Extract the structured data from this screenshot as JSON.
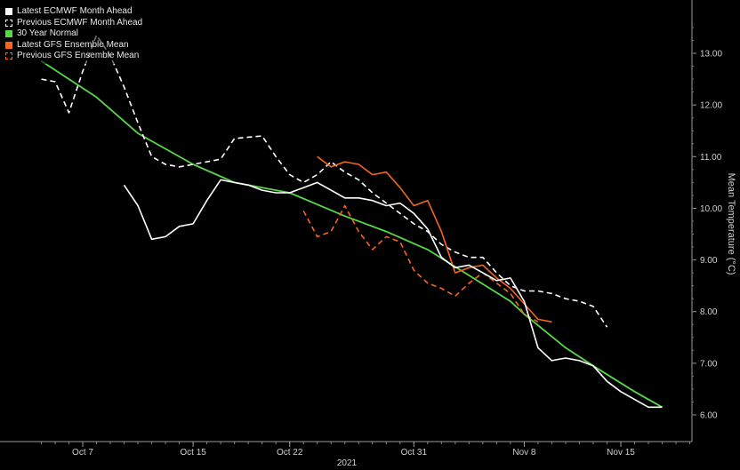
{
  "chart_data": {
    "type": "line",
    "xlabel": "2021",
    "ylabel": "Mean Temperature (°C)",
    "ylim": [
      5.8,
      13.9
    ],
    "xlim": [
      "2021-10-04",
      "2021-11-20"
    ],
    "grid": false,
    "legend_position": "top-left",
    "x_ticks": [
      {
        "date": "2021-10-07",
        "label": "Oct 7"
      },
      {
        "date": "2021-10-15",
        "label": "Oct 15"
      },
      {
        "date": "2021-10-22",
        "label": "Oct 22"
      },
      {
        "date": "2021-10-31",
        "label": "Oct 31"
      },
      {
        "date": "2021-11-08",
        "label": "Nov 8"
      },
      {
        "date": "2021-11-15",
        "label": "Nov 15"
      }
    ],
    "y_ticks": [
      "6.00",
      "7.00",
      "8.00",
      "9.00",
      "10.00",
      "11.00",
      "12.00",
      "13.00"
    ],
    "series": [
      {
        "name": "Latest ECMWF Month Ahead",
        "color": "#ffffff",
        "style": "solid",
        "points": [
          [
            "2021-10-10",
            10.45
          ],
          [
            "2021-10-11",
            10.05
          ],
          [
            "2021-10-12",
            9.4
          ],
          [
            "2021-10-13",
            9.45
          ],
          [
            "2021-10-14",
            9.65
          ],
          [
            "2021-10-15",
            9.7
          ],
          [
            "2021-10-16",
            10.15
          ],
          [
            "2021-10-17",
            10.55
          ],
          [
            "2021-10-18",
            10.5
          ],
          [
            "2021-10-19",
            10.45
          ],
          [
            "2021-10-20",
            10.35
          ],
          [
            "2021-10-21",
            10.3
          ],
          [
            "2021-10-22",
            10.3
          ],
          [
            "2021-10-23",
            10.4
          ],
          [
            "2021-10-24",
            10.5
          ],
          [
            "2021-10-25",
            10.35
          ],
          [
            "2021-10-26",
            10.2
          ],
          [
            "2021-10-27",
            10.2
          ],
          [
            "2021-10-28",
            10.15
          ],
          [
            "2021-10-29",
            10.05
          ],
          [
            "2021-10-30",
            10.1
          ],
          [
            "2021-10-31",
            9.9
          ],
          [
            "2021-11-01",
            9.6
          ],
          [
            "2021-11-02",
            9.05
          ],
          [
            "2021-11-03",
            8.85
          ],
          [
            "2021-11-04",
            8.9
          ],
          [
            "2021-11-05",
            8.75
          ],
          [
            "2021-11-06",
            8.6
          ],
          [
            "2021-11-07",
            8.65
          ],
          [
            "2021-11-08",
            8.2
          ],
          [
            "2021-11-09",
            7.3
          ],
          [
            "2021-11-10",
            7.05
          ],
          [
            "2021-11-11",
            7.1
          ],
          [
            "2021-11-12",
            7.05
          ],
          [
            "2021-11-13",
            6.95
          ],
          [
            "2021-11-14",
            6.65
          ],
          [
            "2021-11-15",
            6.45
          ],
          [
            "2021-11-16",
            6.3
          ],
          [
            "2021-11-17",
            6.15
          ],
          [
            "2021-11-18",
            6.15
          ]
        ]
      },
      {
        "name": "Previous ECMWF Month Ahead",
        "color": "#ffffff",
        "style": "dashed",
        "points": [
          [
            "2021-10-04",
            12.5
          ],
          [
            "2021-10-05",
            12.45
          ],
          [
            "2021-10-06",
            11.85
          ],
          [
            "2021-10-07",
            12.65
          ],
          [
            "2021-10-08",
            13.35
          ],
          [
            "2021-10-09",
            12.95
          ],
          [
            "2021-10-10",
            12.35
          ],
          [
            "2021-10-11",
            11.65
          ],
          [
            "2021-10-12",
            11.0
          ],
          [
            "2021-10-13",
            10.85
          ],
          [
            "2021-10-14",
            10.8
          ],
          [
            "2021-10-15",
            10.85
          ],
          [
            "2021-10-17",
            10.95
          ],
          [
            "2021-10-18",
            11.35
          ],
          [
            "2021-10-20",
            11.4
          ],
          [
            "2021-10-21",
            11.0
          ],
          [
            "2021-10-22",
            10.65
          ],
          [
            "2021-10-23",
            10.5
          ],
          [
            "2021-10-24",
            10.65
          ],
          [
            "2021-10-25",
            10.9
          ],
          [
            "2021-10-26",
            10.7
          ],
          [
            "2021-10-27",
            10.55
          ],
          [
            "2021-10-28",
            10.3
          ],
          [
            "2021-10-29",
            10.1
          ],
          [
            "2021-10-30",
            9.9
          ],
          [
            "2021-10-31",
            9.7
          ],
          [
            "2021-11-01",
            9.55
          ],
          [
            "2021-11-02",
            9.3
          ],
          [
            "2021-11-03",
            9.15
          ],
          [
            "2021-11-04",
            9.05
          ],
          [
            "2021-11-05",
            9.05
          ],
          [
            "2021-11-06",
            8.75
          ],
          [
            "2021-11-07",
            8.5
          ],
          [
            "2021-11-08",
            8.4
          ],
          [
            "2021-11-09",
            8.4
          ],
          [
            "2021-11-10",
            8.35
          ],
          [
            "2021-11-11",
            8.25
          ],
          [
            "2021-11-12",
            8.2
          ],
          [
            "2021-11-13",
            8.1
          ],
          [
            "2021-11-14",
            7.7
          ]
        ]
      },
      {
        "name": "30 Year Normal",
        "color": "#59d64a",
        "style": "solid",
        "points": [
          [
            "2021-10-04",
            12.85
          ],
          [
            "2021-10-08",
            12.15
          ],
          [
            "2021-10-11",
            11.45
          ],
          [
            "2021-10-15",
            10.85
          ],
          [
            "2021-10-18",
            10.5
          ],
          [
            "2021-10-22",
            10.3
          ],
          [
            "2021-10-26",
            9.85
          ],
          [
            "2021-10-29",
            9.55
          ],
          [
            "2021-11-01",
            9.2
          ],
          [
            "2021-11-04",
            8.7
          ],
          [
            "2021-11-07",
            8.2
          ],
          [
            "2021-11-08",
            7.95
          ],
          [
            "2021-11-11",
            7.3
          ],
          [
            "2021-11-13",
            6.95
          ],
          [
            "2021-11-16",
            6.45
          ],
          [
            "2021-11-18",
            6.15
          ]
        ]
      },
      {
        "name": "Latest GFS Ensemble Mean",
        "color": "#f26522",
        "style": "solid",
        "points": [
          [
            "2021-10-24",
            11.0
          ],
          [
            "2021-10-25",
            10.8
          ],
          [
            "2021-10-26",
            10.9
          ],
          [
            "2021-10-27",
            10.85
          ],
          [
            "2021-10-28",
            10.65
          ],
          [
            "2021-10-29",
            10.7
          ],
          [
            "2021-10-30",
            10.4
          ],
          [
            "2021-10-31",
            10.05
          ],
          [
            "2021-11-01",
            10.15
          ],
          [
            "2021-11-02",
            9.55
          ],
          [
            "2021-11-03",
            8.75
          ],
          [
            "2021-11-04",
            8.85
          ],
          [
            "2021-11-05",
            8.9
          ],
          [
            "2021-11-06",
            8.65
          ],
          [
            "2021-11-07",
            8.45
          ],
          [
            "2021-11-08",
            8.15
          ],
          [
            "2021-11-09",
            7.85
          ],
          [
            "2021-11-10",
            7.8
          ]
        ]
      },
      {
        "name": "Previous GFS Ensemble Mean",
        "color": "#f26522",
        "style": "dashed",
        "points": [
          [
            "2021-10-23",
            9.95
          ],
          [
            "2021-10-24",
            9.45
          ],
          [
            "2021-10-25",
            9.55
          ],
          [
            "2021-10-26",
            10.05
          ],
          [
            "2021-10-27",
            9.55
          ],
          [
            "2021-10-28",
            9.2
          ],
          [
            "2021-10-29",
            9.45
          ],
          [
            "2021-10-30",
            9.35
          ],
          [
            "2021-10-31",
            8.8
          ],
          [
            "2021-11-01",
            8.55
          ],
          [
            "2021-11-02",
            8.45
          ],
          [
            "2021-11-03",
            8.3
          ],
          [
            "2021-11-04",
            8.55
          ],
          [
            "2021-11-05",
            8.75
          ],
          [
            "2021-11-06",
            8.55
          ],
          [
            "2021-11-07",
            8.35
          ],
          [
            "2021-11-08",
            7.95
          ],
          [
            "2021-11-09",
            7.8
          ]
        ]
      }
    ]
  }
}
